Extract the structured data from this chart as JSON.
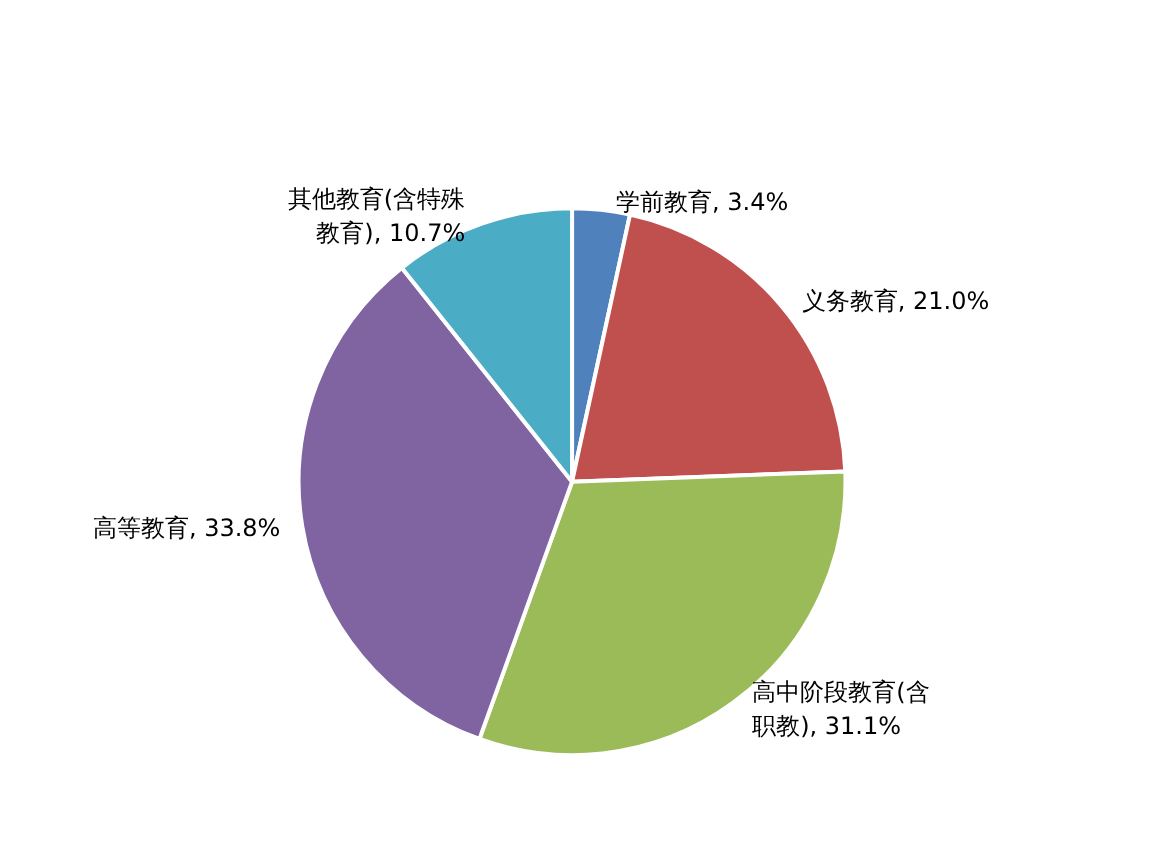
{
  "chart_data": {
    "type": "pie",
    "categories": [
      "学前教育",
      "义务教育",
      "高中阶段教育(含职教)",
      "高等教育",
      "其他教育(含特殊教育)"
    ],
    "values": [
      3.4,
      21.0,
      31.1,
      33.8,
      10.7
    ],
    "colors": [
      "#4f81bd",
      "#c0504d",
      "#9bbb59",
      "#8064a2",
      "#4bacc6"
    ],
    "value_labels": [
      "3.4%",
      "21.0%",
      "31.1%",
      "33.8%",
      "10.7%"
    ],
    "legend": false
  }
}
